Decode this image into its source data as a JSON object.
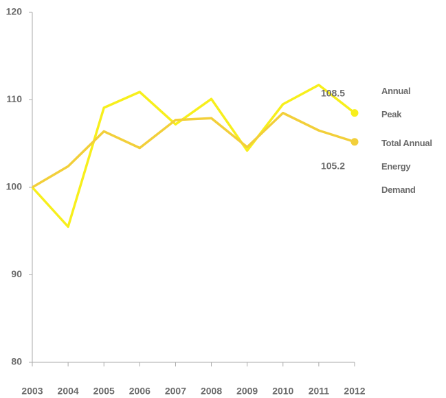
{
  "chart_data": {
    "type": "line",
    "categories": [
      "2003",
      "2004",
      "2005",
      "2006",
      "2007",
      "2008",
      "2009",
      "2010",
      "2011",
      "2012"
    ],
    "series": [
      {
        "name": "Annual Peak",
        "color": "#f7ef1c",
        "values": [
          100,
          95.5,
          109.1,
          110.9,
          107.2,
          110.1,
          104.2,
          109.5,
          111.7,
          108.5
        ]
      },
      {
        "name": "Total Annual Energy Demand",
        "color": "#f2cf3a",
        "values": [
          100,
          102.4,
          106.4,
          104.5,
          107.7,
          107.9,
          104.6,
          108.5,
          106.5,
          105.2
        ]
      }
    ],
    "ylim": [
      80,
      120
    ],
    "yticks": [
      80,
      90,
      100,
      110,
      120
    ],
    "grid": false
  }
}
